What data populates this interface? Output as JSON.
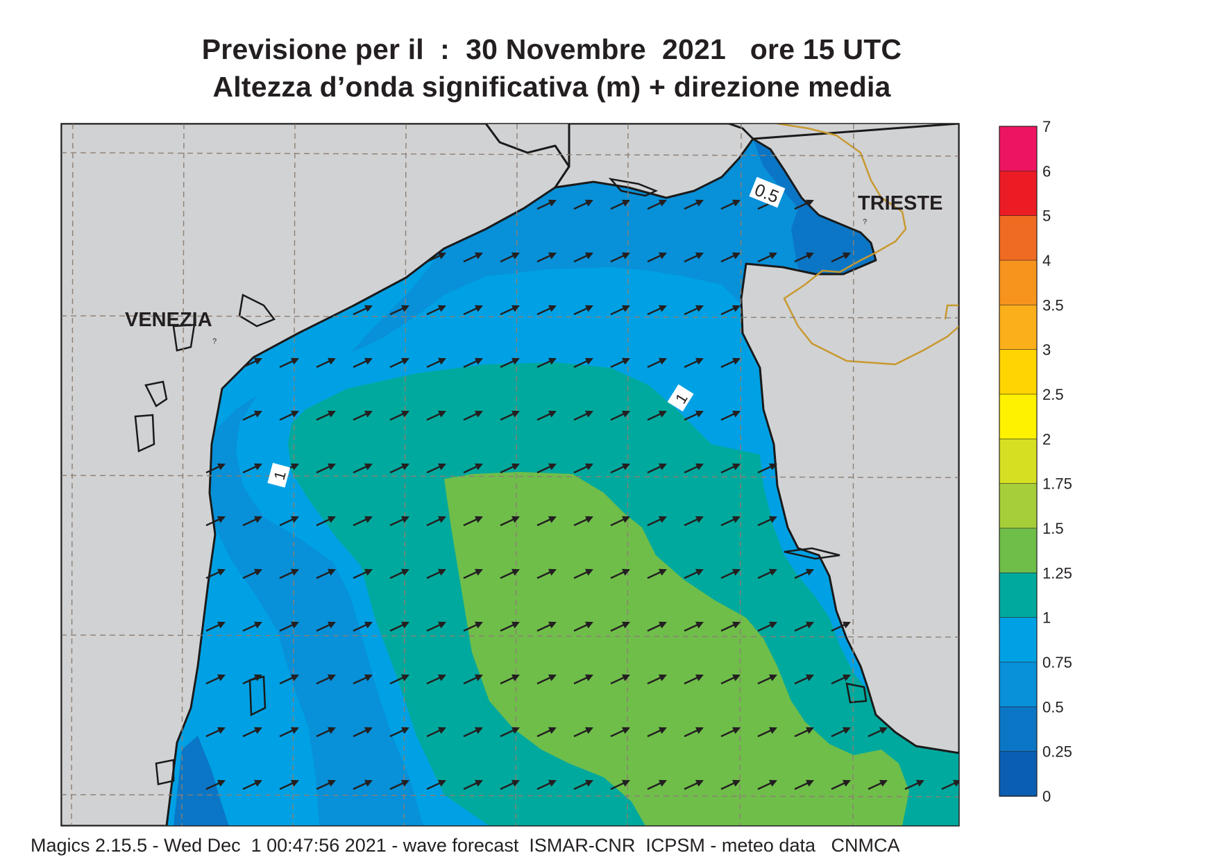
{
  "title": {
    "line1": "Previsione per il  :  30 Novembre  2021   ore 15 UTC",
    "line2": "Altezza d’onda significativa (m) + direzione media"
  },
  "map": {
    "cities": [
      "VENEZIA",
      "TRIESTE"
    ],
    "contour_labels": [
      "0.5",
      "1",
      "1"
    ],
    "colors": {
      "land": "#d1d2d4",
      "coast": "#1a1a1a",
      "border": "#c8992f",
      "grid": "#8c7f72",
      "arrow": "#231f20"
    }
  },
  "legend": {
    "ticks": [
      "7",
      "6",
      "5",
      "4",
      "3.5",
      "3",
      "2.5",
      "2",
      "1.75",
      "1.5",
      "1.25",
      "1",
      "0.75",
      "0.5",
      "0.25",
      "0"
    ],
    "bins": [
      {
        "range": "6-7",
        "color": "#ed1562"
      },
      {
        "range": "5-6",
        "color": "#ec1c24"
      },
      {
        "range": "4-5",
        "color": "#f06b22"
      },
      {
        "range": "3.5-4",
        "color": "#f7941d"
      },
      {
        "range": "3-3.5",
        "color": "#fbb01b"
      },
      {
        "range": "2.5-3",
        "color": "#ffd400"
      },
      {
        "range": "2-2.5",
        "color": "#fff200"
      },
      {
        "range": "1.75-2",
        "color": "#d7df23"
      },
      {
        "range": "1.5-1.75",
        "color": "#a6ce39"
      },
      {
        "range": "1.25-1.5",
        "color": "#6fbe4a"
      },
      {
        "range": "1-1.25",
        "color": "#00a99d"
      },
      {
        "range": "0.75-1",
        "color": "#00a1e4"
      },
      {
        "range": "0.5-0.75",
        "color": "#0890d8"
      },
      {
        "range": "0.25-0.5",
        "color": "#0b76c6"
      },
      {
        "range": "0-0.25",
        "color": "#0a5fb4"
      }
    ]
  },
  "footer": "Magics 2.15.5 - Wed Dec  1 00:47:56 2021 - wave forecast  ISMAR-CNR  ICPSM - meteo data   CNMCA"
}
